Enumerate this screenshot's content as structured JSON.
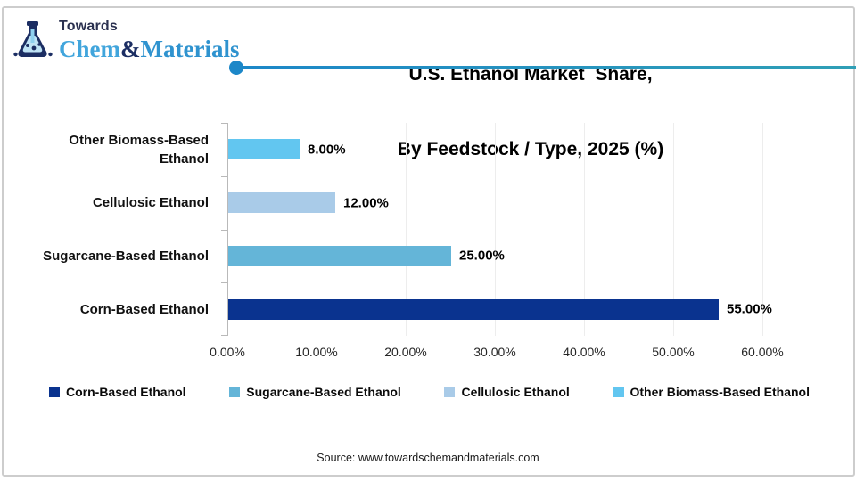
{
  "branding": {
    "towards": "Towards",
    "chem": "Chem",
    "amp": "&",
    "materials": "Materials",
    "color_navy": "#1c2e63",
    "color_chem": "#41a5dc",
    "color_materials": "#2f93cf"
  },
  "header": {
    "title_line1": "U.S. Ethanol Market  Share,",
    "title_line2": "By Feedstock / Type, 2025 (%)",
    "accent_color_left": "#1c87c8",
    "accent_color_right": "#2f9fb6"
  },
  "chart_data": {
    "type": "bar",
    "orientation": "horizontal",
    "categories": [
      "Other Biomass-Based Ethanol",
      "Cellulosic Ethanol",
      "Sugarcane-Based Ethanol",
      "Corn-Based Ethanol"
    ],
    "values": [
      8,
      12,
      25,
      55
    ],
    "value_labels": [
      "8.00%",
      "12.00%",
      "25.00%",
      "55.00%"
    ],
    "bar_colors": [
      "#62c6f0",
      "#a9cbe8",
      "#64b5d8",
      "#0a338f"
    ],
    "x_ticks": [
      "0.00%",
      "10.00%",
      "20.00%",
      "30.00%",
      "40.00%",
      "50.00%",
      "60.00%"
    ],
    "x_tick_values": [
      0,
      10,
      20,
      30,
      40,
      50,
      60
    ],
    "xlim": [
      0,
      60
    ],
    "grid": true,
    "legend_position": "bottom",
    "title": "U.S. Ethanol Market Share, By Feedstock / Type, 2025 (%)"
  },
  "legend": {
    "items": [
      {
        "label": "Corn-Based Ethanol",
        "color": "#0a338f"
      },
      {
        "label": "Sugarcane-Based Ethanol",
        "color": "#64b5d8"
      },
      {
        "label": "Cellulosic Ethanol",
        "color": "#a9cbe8"
      },
      {
        "label": "Other Biomass-Based Ethanol",
        "color": "#62c6f0"
      }
    ]
  },
  "footer": {
    "source": "Source: www.towardschemandmaterials.com"
  }
}
